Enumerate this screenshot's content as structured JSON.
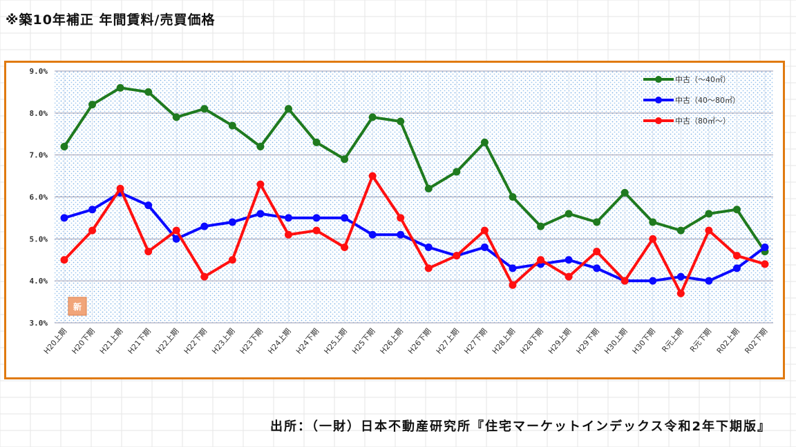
{
  "header": {
    "title": "※築10年補正 年間賃料/売買価格"
  },
  "footer": {
    "source": "出所：（一財）日本不動産研究所『住宅マーケットインデックス令和2年下期版』"
  },
  "chart_data": {
    "type": "line",
    "title": "",
    "xlabel": "",
    "ylabel": "",
    "ylim": [
      3.0,
      9.0
    ],
    "y_ticks": [
      "3.0%",
      "4.0%",
      "5.0%",
      "6.0%",
      "7.0%",
      "8.0%",
      "9.0%"
    ],
    "grid": true,
    "legend_position": "top-right",
    "stamp": "新",
    "categories": [
      "H20上期",
      "H20下期",
      "H21上期",
      "H21下期",
      "H22上期",
      "H22下期",
      "H23上期",
      "H23下期",
      "H24上期",
      "H24下期",
      "H25上期",
      "H25下期",
      "H26上期",
      "H26下期",
      "H27上期",
      "H27下期",
      "H28上期",
      "H28下期",
      "H29上期",
      "H29下期",
      "H30上期",
      "H30下期",
      "R元上期",
      "R元下期",
      "R02上期",
      "R02下期"
    ],
    "series": [
      {
        "name": "中古（～40㎡）",
        "color": "#1f7a1f",
        "values": [
          7.2,
          8.2,
          8.6,
          8.5,
          7.9,
          8.1,
          7.7,
          7.2,
          8.1,
          7.3,
          6.9,
          7.9,
          7.8,
          6.2,
          6.6,
          7.3,
          6.0,
          5.3,
          5.6,
          5.4,
          6.1,
          5.4,
          5.2,
          5.6,
          5.7,
          4.7
        ]
      },
      {
        "name": "中古（40～80㎡）",
        "color": "#0a0aff",
        "values": [
          5.5,
          5.7,
          6.1,
          5.8,
          5.0,
          5.3,
          5.4,
          5.6,
          5.5,
          5.5,
          5.5,
          5.1,
          5.1,
          4.8,
          4.6,
          4.8,
          4.3,
          4.4,
          4.5,
          4.3,
          4.0,
          4.0,
          4.1,
          4.0,
          4.3,
          4.8
        ]
      },
      {
        "name": "中古（80㎡～）",
        "color": "#ff1010",
        "values": [
          4.5,
          5.2,
          6.2,
          4.7,
          5.2,
          4.1,
          4.5,
          6.3,
          5.1,
          5.2,
          4.8,
          6.5,
          5.5,
          4.3,
          4.6,
          5.2,
          3.9,
          4.5,
          4.1,
          4.7,
          4.0,
          5.0,
          3.7,
          5.2,
          4.6,
          4.4
        ]
      }
    ]
  }
}
